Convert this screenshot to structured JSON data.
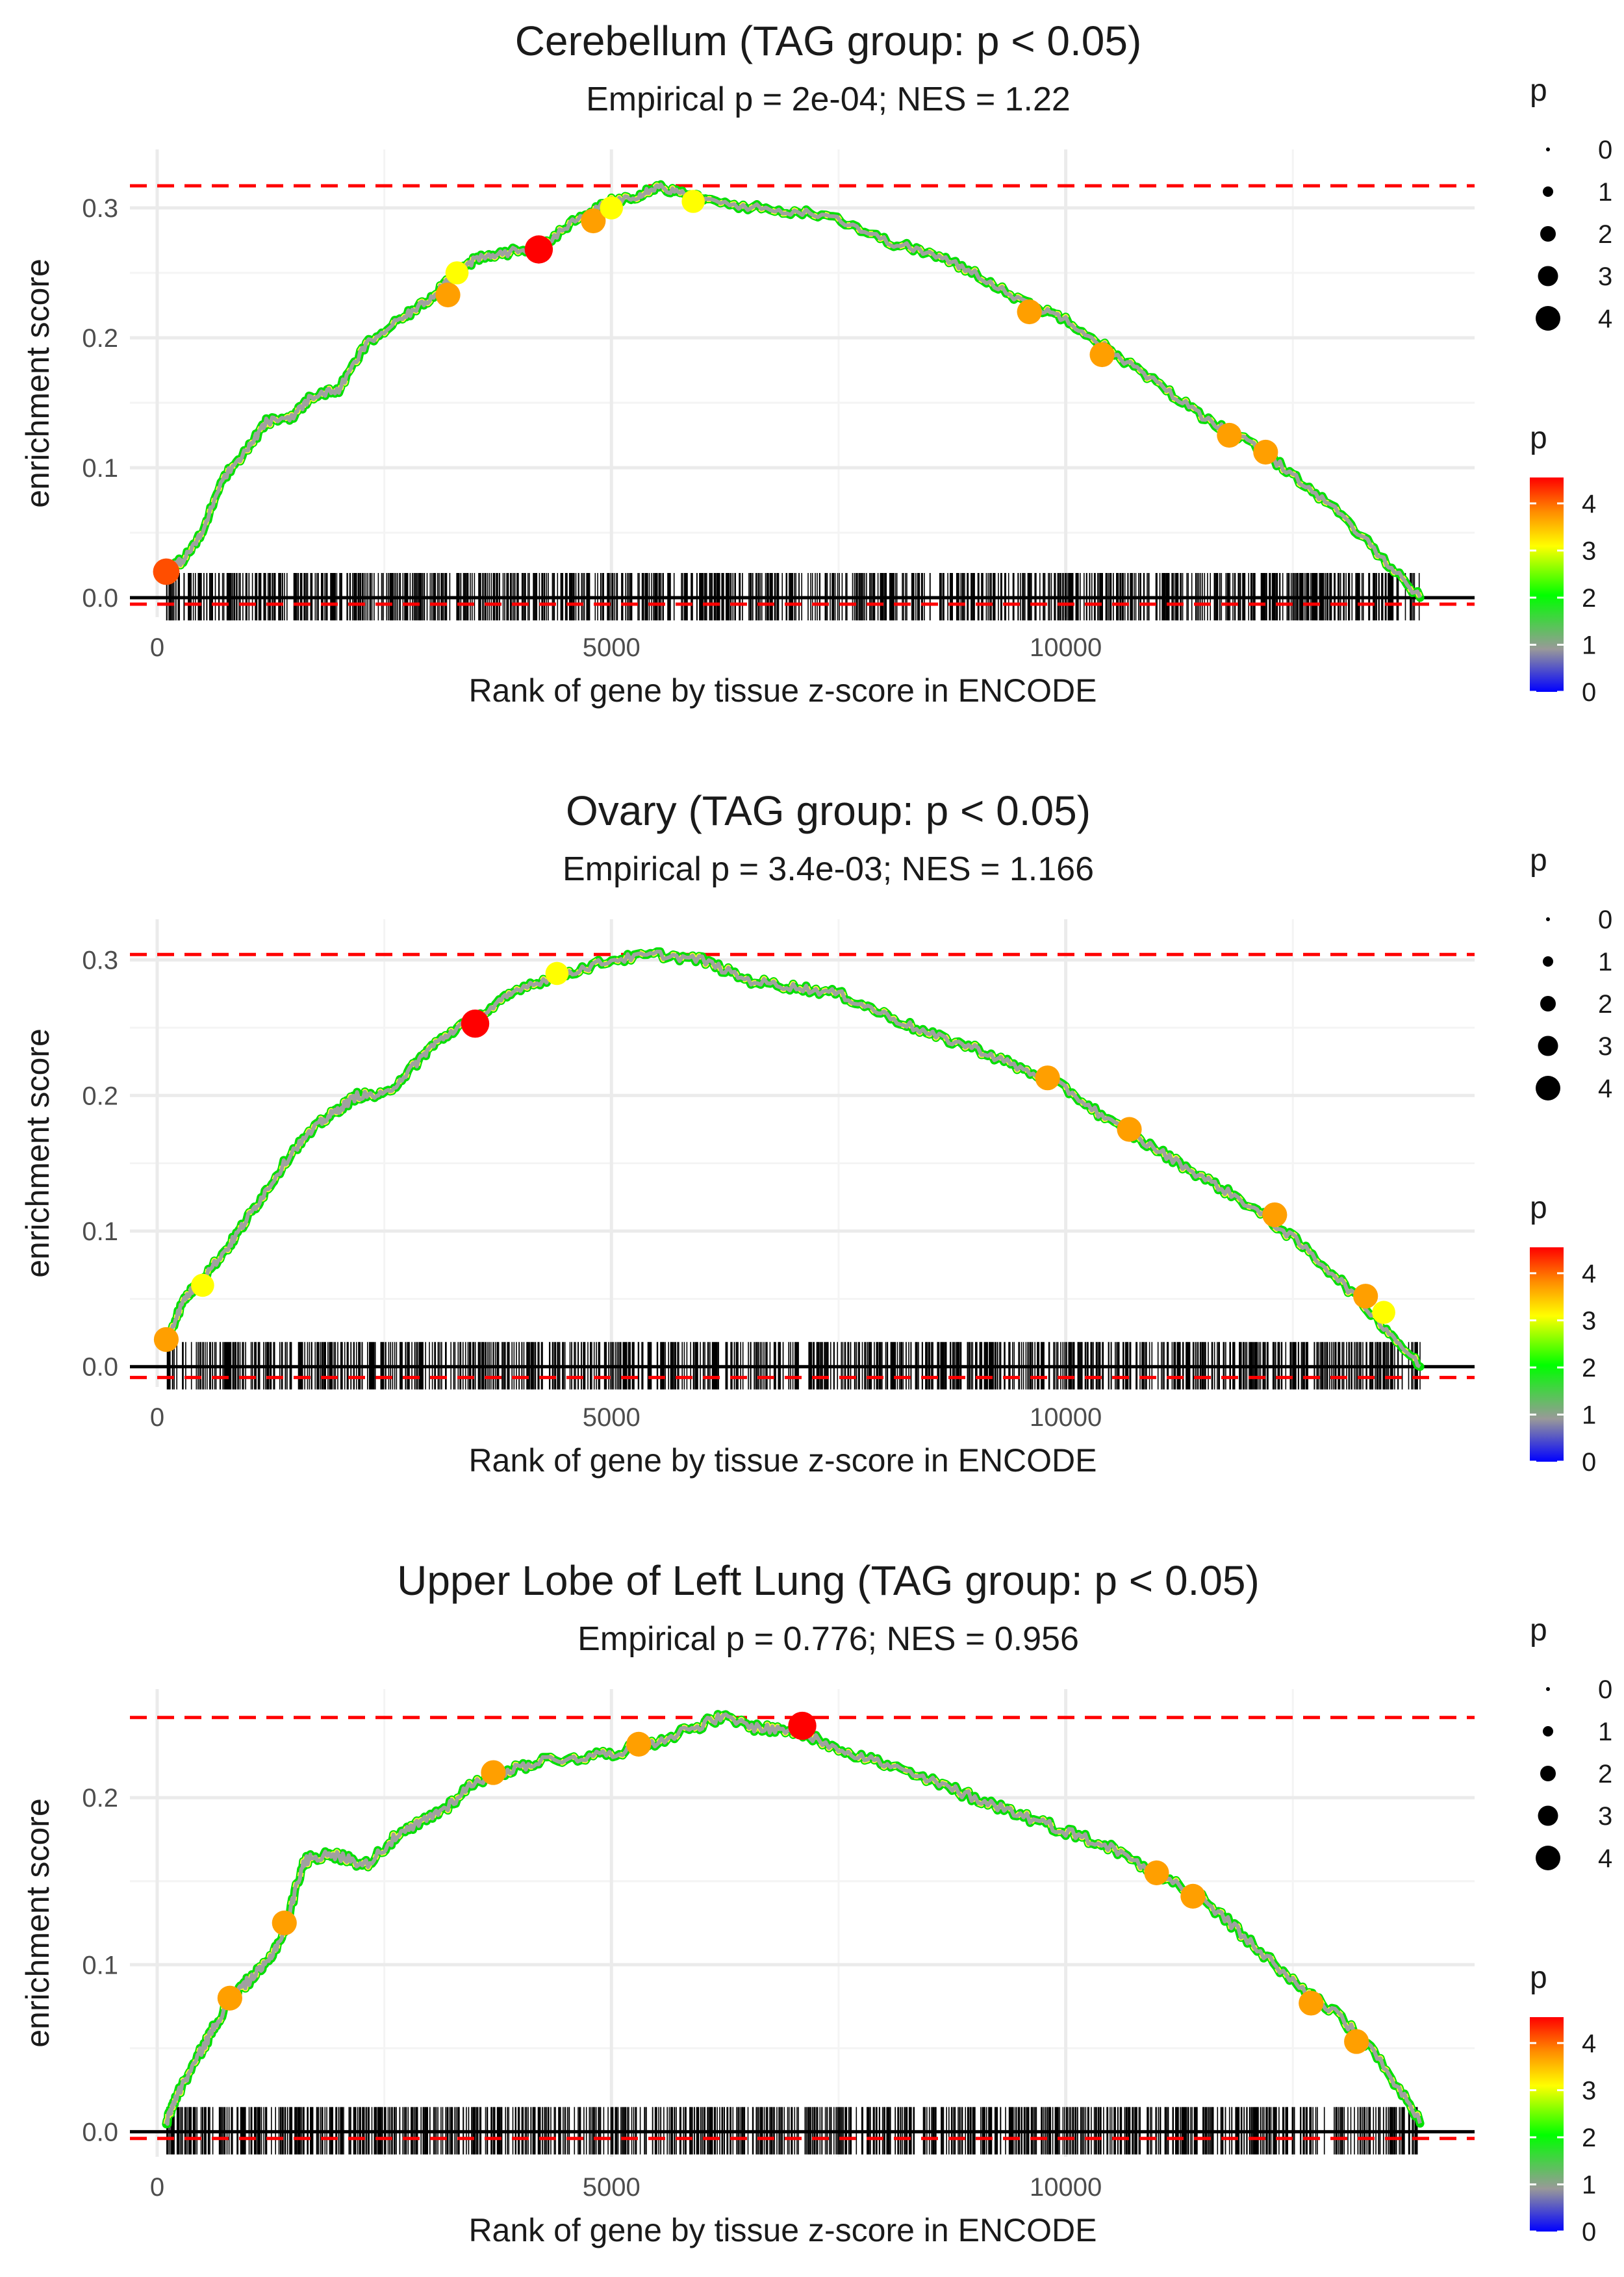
{
  "colors": {
    "ref_line": "#ff0000",
    "baseline": "#000000",
    "gridline": "#ebebeb",
    "tick_label": "#4d4d4d",
    "text": "#1a1a1a",
    "path_line": "#a0a0a0",
    "gradient_stops": [
      "#0000ff",
      "#999999",
      "#00ff00",
      "#ffff00",
      "#ff8c00",
      "#ff0000"
    ]
  },
  "chart_data": [
    {
      "type": "line",
      "title": "Cerebellum (TAG group: p < 0.05)",
      "subtitle": "Empirical p = 2e-04; NES = 1.22",
      "xlabel": "Rank of gene by tissue z-score in ENCODE",
      "ylabel": "enrichment score",
      "xlim": [
        -300,
        14500
      ],
      "ylim": [
        -0.015,
        0.345
      ],
      "xticks": [
        0,
        5000,
        10000
      ],
      "xtick_labels": [
        "0",
        "5000",
        "10000"
      ],
      "yticks": [
        0.0,
        0.1,
        0.2,
        0.3
      ],
      "ytick_labels": [
        "0.0",
        "0.1",
        "0.2",
        "0.3"
      ],
      "ref_lines": [
        0.317,
        -0.005
      ],
      "n_genes": 13900,
      "n_ticks": 1000,
      "curve": [
        [
          100,
          0.02
        ],
        [
          300,
          0.03
        ],
        [
          500,
          0.05
        ],
        [
          700,
          0.09
        ],
        [
          1000,
          0.115
        ],
        [
          1200,
          0.135
        ],
        [
          1500,
          0.14
        ],
        [
          1700,
          0.155
        ],
        [
          2000,
          0.16
        ],
        [
          2300,
          0.195
        ],
        [
          2700,
          0.215
        ],
        [
          3000,
          0.23
        ],
        [
          3200,
          0.245
        ],
        [
          3500,
          0.26
        ],
        [
          3800,
          0.265
        ],
        [
          4200,
          0.27
        ],
        [
          4600,
          0.29
        ],
        [
          5000,
          0.305
        ],
        [
          5300,
          0.31
        ],
        [
          5500,
          0.317
        ],
        [
          5800,
          0.31
        ],
        [
          6100,
          0.305
        ],
        [
          6800,
          0.298
        ],
        [
          7400,
          0.295
        ],
        [
          8000,
          0.275
        ],
        [
          8500,
          0.265
        ],
        [
          9000,
          0.25
        ],
        [
          9600,
          0.225
        ],
        [
          10000,
          0.215
        ],
        [
          10500,
          0.19
        ],
        [
          11000,
          0.165
        ],
        [
          11500,
          0.14
        ],
        [
          12000,
          0.12
        ],
        [
          12500,
          0.095
        ],
        [
          13000,
          0.065
        ],
        [
          13500,
          0.03
        ],
        [
          13900,
          0.0
        ]
      ],
      "highlights": [
        [
          100,
          0.02,
          4
        ],
        [
          3200,
          0.233,
          3.5
        ],
        [
          3300,
          0.25,
          3
        ],
        [
          4200,
          0.268,
          4.5
        ],
        [
          4800,
          0.29,
          3.5
        ],
        [
          5000,
          0.3,
          3
        ],
        [
          5900,
          0.305,
          3
        ],
        [
          9600,
          0.22,
          3.5
        ],
        [
          10400,
          0.187,
          3.5
        ],
        [
          11800,
          0.125,
          3.5
        ],
        [
          12200,
          0.112,
          3.5
        ]
      ],
      "size_legend": {
        "title": "p",
        "values": [
          "0",
          "1",
          "2",
          "3",
          "4"
        ]
      },
      "color_legend": {
        "title": "p",
        "labels": [
          "4",
          "3",
          "2",
          "1",
          "0"
        ]
      }
    },
    {
      "type": "line",
      "title": "Ovary (TAG group: p < 0.05)",
      "subtitle": "Empirical p = 3.4e-03; NES = 1.166",
      "xlabel": "Rank of gene by tissue z-score in ENCODE",
      "ylabel": "enrichment score",
      "xlim": [
        -300,
        14500
      ],
      "ylim": [
        -0.015,
        0.33
      ],
      "xticks": [
        0,
        5000,
        10000
      ],
      "xtick_labels": [
        "0",
        "5000",
        "10000"
      ],
      "yticks": [
        0.0,
        0.1,
        0.2,
        0.3
      ],
      "ytick_labels": [
        "0.0",
        "0.1",
        "0.2",
        "0.3"
      ],
      "ref_lines": [
        0.304,
        -0.008
      ],
      "n_genes": 13900,
      "n_ticks": 1000,
      "curve": [
        [
          100,
          0.02
        ],
        [
          300,
          0.05
        ],
        [
          500,
          0.065
        ],
        [
          800,
          0.09
        ],
        [
          1000,
          0.11
        ],
        [
          1200,
          0.13
        ],
        [
          1500,
          0.16
        ],
        [
          1800,
          0.18
        ],
        [
          2000,
          0.19
        ],
        [
          2200,
          0.2
        ],
        [
          2500,
          0.2
        ],
        [
          2800,
          0.22
        ],
        [
          3000,
          0.235
        ],
        [
          3300,
          0.25
        ],
        [
          3700,
          0.265
        ],
        [
          4000,
          0.28
        ],
        [
          4500,
          0.29
        ],
        [
          5000,
          0.3
        ],
        [
          5500,
          0.304
        ],
        [
          6000,
          0.3
        ],
        [
          6500,
          0.285
        ],
        [
          7000,
          0.28
        ],
        [
          7500,
          0.275
        ],
        [
          8000,
          0.26
        ],
        [
          8500,
          0.245
        ],
        [
          9000,
          0.235
        ],
        [
          9500,
          0.22
        ],
        [
          10000,
          0.205
        ],
        [
          10500,
          0.18
        ],
        [
          11000,
          0.16
        ],
        [
          11500,
          0.14
        ],
        [
          12000,
          0.12
        ],
        [
          12500,
          0.095
        ],
        [
          13000,
          0.065
        ],
        [
          13500,
          0.03
        ],
        [
          13900,
          0.0
        ]
      ],
      "highlights": [
        [
          100,
          0.02,
          3.5
        ],
        [
          500,
          0.06,
          3
        ],
        [
          3500,
          0.253,
          4.5
        ],
        [
          4400,
          0.29,
          3
        ],
        [
          9800,
          0.213,
          3.5
        ],
        [
          10700,
          0.175,
          3.5
        ],
        [
          12300,
          0.112,
          3.5
        ],
        [
          13300,
          0.052,
          3.5
        ],
        [
          13500,
          0.04,
          3
        ]
      ],
      "size_legend": {
        "title": "p",
        "values": [
          "0",
          "1",
          "2",
          "3",
          "4"
        ]
      },
      "color_legend": {
        "title": "p",
        "labels": [
          "4",
          "3",
          "2",
          "1",
          "0"
        ]
      }
    },
    {
      "type": "line",
      "title": "Upper Lobe of Left Lung (TAG group: p < 0.05)",
      "subtitle": "Empirical p = 0.776; NES = 0.956",
      "xlabel": "Rank of gene by tissue z-score in ENCODE",
      "ylabel": "enrichment score",
      "xlim": [
        -300,
        14500
      ],
      "ylim": [
        -0.015,
        0.265
      ],
      "xticks": [
        0,
        5000,
        10000
      ],
      "xtick_labels": [
        "0",
        "5000",
        "10000"
      ],
      "yticks": [
        0.0,
        0.1,
        0.2
      ],
      "ytick_labels": [
        "0.0",
        "0.1",
        "0.2"
      ],
      "ref_lines": [
        0.248,
        -0.004
      ],
      "n_genes": 13900,
      "n_ticks": 1000,
      "curve": [
        [
          100,
          0.005
        ],
        [
          200,
          0.02
        ],
        [
          400,
          0.04
        ],
        [
          600,
          0.06
        ],
        [
          800,
          0.08
        ],
        [
          1000,
          0.09
        ],
        [
          1200,
          0.1
        ],
        [
          1400,
          0.12
        ],
        [
          1600,
          0.16
        ],
        [
          1700,
          0.165
        ],
        [
          2000,
          0.165
        ],
        [
          2300,
          0.16
        ],
        [
          2600,
          0.175
        ],
        [
          2900,
          0.185
        ],
        [
          3200,
          0.195
        ],
        [
          3500,
          0.21
        ],
        [
          3800,
          0.215
        ],
        [
          4200,
          0.222
        ],
        [
          4800,
          0.225
        ],
        [
          5300,
          0.23
        ],
        [
          5800,
          0.24
        ],
        [
          6200,
          0.248
        ],
        [
          6600,
          0.242
        ],
        [
          7000,
          0.24
        ],
        [
          7500,
          0.23
        ],
        [
          8000,
          0.22
        ],
        [
          8500,
          0.21
        ],
        [
          9000,
          0.2
        ],
        [
          9500,
          0.19
        ],
        [
          10000,
          0.18
        ],
        [
          10500,
          0.17
        ],
        [
          11000,
          0.155
        ],
        [
          11500,
          0.14
        ],
        [
          12000,
          0.115
        ],
        [
          12500,
          0.09
        ],
        [
          13000,
          0.07
        ],
        [
          13500,
          0.04
        ],
        [
          13900,
          0.005
        ]
      ],
      "highlights": [
        [
          800,
          0.08,
          3.5
        ],
        [
          1400,
          0.125,
          3.5
        ],
        [
          3700,
          0.215,
          3.5
        ],
        [
          5300,
          0.232,
          3.5
        ],
        [
          7100,
          0.243,
          4.5
        ],
        [
          11000,
          0.155,
          3.5
        ],
        [
          11400,
          0.141,
          3.5
        ],
        [
          12700,
          0.077,
          3.5
        ],
        [
          13200,
          0.054,
          3.5
        ]
      ],
      "size_legend": {
        "title": "p",
        "values": [
          "0",
          "1",
          "2",
          "3",
          "4"
        ]
      },
      "color_legend": {
        "title": "p",
        "labels": [
          "4",
          "3",
          "2",
          "1",
          "0"
        ]
      }
    }
  ]
}
